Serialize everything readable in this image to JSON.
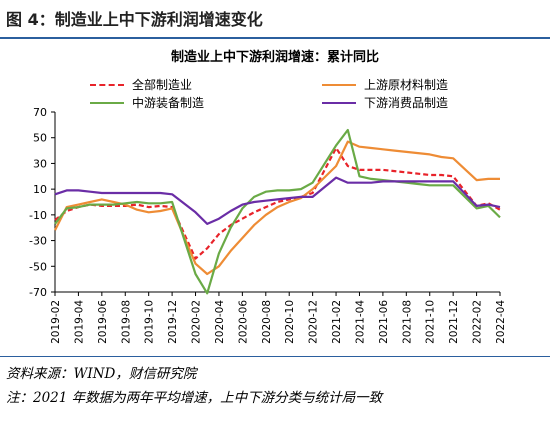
{
  "figure": {
    "title": "图 4：制造业上中下游利润增速变化",
    "source": "资料来源：WIND，财信研究院",
    "note": "注：2021 年数据为两年平均增速，上中下游分类与统计局一致"
  },
  "chart_data": {
    "type": "line",
    "title": "制造业上中下游利润增速：累计同比",
    "xlabel": "",
    "ylabel": "",
    "ylim": [
      -70,
      70
    ],
    "yticks": [
      70,
      50,
      30,
      10,
      -10,
      -30,
      -50,
      -70
    ],
    "x_tick_labels": [
      "2019-02",
      "2019-04",
      "2019-06",
      "2019-08",
      "2019-10",
      "2019-12",
      "2020-02",
      "2020-04",
      "2020-06",
      "2020-08",
      "2020-10",
      "2020-12",
      "2021-02",
      "2021-04",
      "2021-06",
      "2021-08",
      "2021-10",
      "2021-12",
      "2022-02",
      "2022-04"
    ],
    "x": [
      "2019-02",
      "2019-03",
      "2019-04",
      "2019-05",
      "2019-06",
      "2019-07",
      "2019-08",
      "2019-09",
      "2019-10",
      "2019-11",
      "2019-12",
      "2020-01",
      "2020-02",
      "2020-03",
      "2020-04",
      "2020-05",
      "2020-06",
      "2020-07",
      "2020-08",
      "2020-09",
      "2020-10",
      "2020-11",
      "2020-12",
      "2021-01",
      "2021-02",
      "2021-03",
      "2021-04",
      "2021-05",
      "2021-06",
      "2021-07",
      "2021-08",
      "2021-09",
      "2021-10",
      "2021-11",
      "2021-12",
      "2022-01",
      "2022-02",
      "2022-03",
      "2022-04"
    ],
    "grid": false,
    "legend_position": "top",
    "series": [
      {
        "name": "全部制造业",
        "color": "#e8232a",
        "dash": true,
        "values": [
          -14,
          -7,
          -4,
          -2,
          -3,
          -3,
          -3,
          -2,
          -4,
          -3,
          -4,
          null,
          -44,
          -36,
          -25,
          -18,
          -13,
          -8,
          -4,
          0,
          2,
          4,
          7,
          null,
          42,
          28,
          25,
          25,
          25,
          24,
          23,
          22,
          21,
          21,
          20,
          null,
          -3,
          -1,
          -6
        ]
      },
      {
        "name": "上游原材料制造",
        "color": "#ee8c35",
        "dash": false,
        "values": [
          -22,
          -4,
          -2,
          0,
          2,
          0,
          -2,
          -6,
          -8,
          -7,
          -5,
          null,
          -48,
          -56,
          -50,
          -38,
          -28,
          -18,
          -10,
          -4,
          0,
          3,
          10,
          null,
          28,
          47,
          43,
          42,
          41,
          40,
          39,
          38,
          37,
          35,
          34,
          null,
          17,
          18,
          18
        ]
      },
      {
        "name": "中游装备制造",
        "color": "#6aaa46",
        "dash": false,
        "values": [
          -17,
          -5,
          -4,
          -2,
          -2,
          -2,
          -1,
          0,
          -1,
          -1,
          0,
          null,
          -56,
          -71,
          -40,
          -20,
          -5,
          4,
          8,
          9,
          9,
          10,
          15,
          null,
          44,
          56,
          20,
          18,
          17,
          16,
          15,
          14,
          13,
          13,
          13,
          null,
          -5,
          -3,
          -12
        ]
      },
      {
        "name": "下游消费品制造",
        "color": "#6a2da6",
        "dash": false,
        "values": [
          6,
          9,
          9,
          8,
          7,
          7,
          7,
          7,
          7,
          7,
          6,
          null,
          -8,
          -17,
          -13,
          -7,
          -2,
          0,
          1,
          2,
          3,
          4,
          4,
          null,
          19,
          15,
          15,
          15,
          16,
          16,
          16,
          16,
          16,
          16,
          16,
          null,
          -3,
          -2,
          -4
        ]
      }
    ]
  }
}
